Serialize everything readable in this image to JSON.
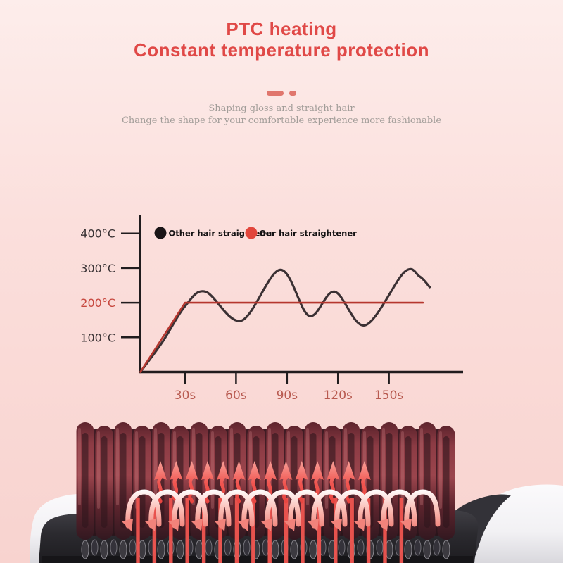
{
  "page": {
    "background_top": "#fdedeb",
    "background_bottom": "#f8d3cf"
  },
  "header": {
    "title_line1": "PTC heating",
    "title_line2": "Constant temperature protection",
    "title_color": "#e04947",
    "divider_color": "#e0766d",
    "tagline_line1": "Shaping gloss and straight hair",
    "tagline_line2": "Change the shape for your comfortable experience more fashionable",
    "tagline_color": "#a29d99"
  },
  "chart_data": {
    "type": "line",
    "title": "",
    "xlabel": "",
    "ylabel": "",
    "x_unit": "s",
    "y_unit": "°C",
    "xlim": [
      0,
      180
    ],
    "ylim": [
      0,
      450
    ],
    "grid": false,
    "legend_position": "top",
    "x_ticks": [
      30,
      60,
      90,
      120,
      150
    ],
    "x_tick_labels": [
      "30s",
      "60s",
      "90s",
      "120s",
      "150s"
    ],
    "y_ticks": [
      100,
      200,
      300,
      400
    ],
    "y_tick_labels": [
      "100°C",
      "200°C",
      "300°C",
      "400°C"
    ],
    "y_tick_highlight": "200°C",
    "axis_color": "#201c1e",
    "x_label_color": "#b85a50",
    "y_label_color": "#3a3335",
    "y_label_highlight_color": "#c7483f",
    "series": [
      {
        "name": "Other hair straightener",
        "line_color": "#3b3134",
        "dot_color": "#1a1517",
        "style": "wavy",
        "points": [
          [
            0,
            0
          ],
          [
            15,
            88
          ],
          [
            30,
            190
          ],
          [
            42,
            232
          ],
          [
            63,
            148
          ],
          [
            86,
            295
          ],
          [
            103,
            162
          ],
          [
            118,
            232
          ],
          [
            136,
            135
          ],
          [
            159,
            288
          ],
          [
            168,
            276
          ],
          [
            174,
            245
          ]
        ]
      },
      {
        "name": "Our hair straightener",
        "line_color": "#b5362e",
        "dot_color": "#e2463c",
        "style": "straight",
        "points": [
          [
            0,
            0
          ],
          [
            30,
            200
          ],
          [
            170,
            200
          ]
        ]
      }
    ]
  },
  "product": {
    "description": "Hair straightener brush head with PTC heating elements and rising heat arrows",
    "teeth_count": 20,
    "back_teeth_count": 19,
    "up_arrow_count": 14,
    "arch_arrow_count": 13,
    "heat_line_count": 17,
    "tooth_color_mid": "#9b454d",
    "tooth_color_dark": "#4a1f27",
    "arrow_color": "#f05550",
    "base_color": "#2b2a2f",
    "body_color": "#f2f1f4"
  }
}
